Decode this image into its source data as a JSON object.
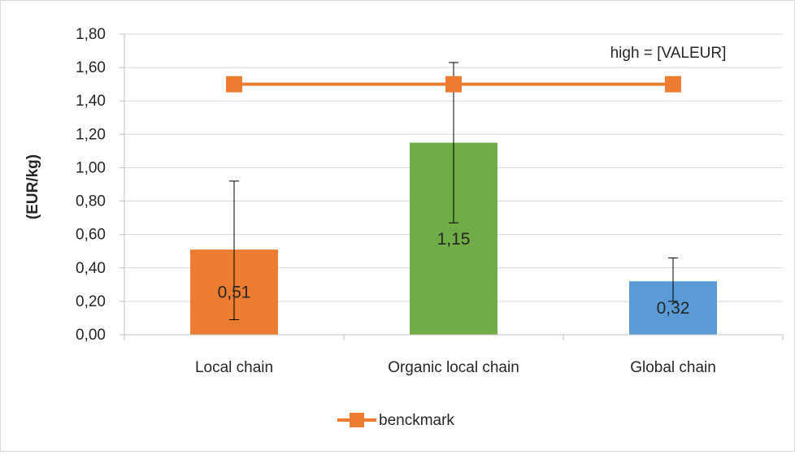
{
  "chart_data": {
    "type": "bar",
    "categories": [
      "Local chain",
      "Organic local chain",
      "Global chain"
    ],
    "values": [
      0.51,
      1.15,
      0.32
    ],
    "value_labels": [
      "0,51",
      "1,15",
      "0,32"
    ],
    "bar_colors": [
      "#ed7d31",
      "#70ad47",
      "#5b9bd5"
    ],
    "error_bars": [
      {
        "low": 0.09,
        "high": 0.92
      },
      {
        "low": 0.67,
        "high": 1.63
      },
      {
        "low": 0.2,
        "high": 0.46
      }
    ],
    "line_series": {
      "name": "benckmark",
      "values": [
        1.5,
        1.5,
        1.5
      ],
      "color": "#ed7d31",
      "marker": "square"
    },
    "annotation": "high = [VALEUR]",
    "ylabel": "(EUR/kg)",
    "xlabel": "",
    "ylim": [
      0,
      1.8
    ],
    "y_ticks": [
      {
        "value": 0.0,
        "label": "0,00"
      },
      {
        "value": 0.2,
        "label": "0,20"
      },
      {
        "value": 0.4,
        "label": "0,40"
      },
      {
        "value": 0.6,
        "label": "0,60"
      },
      {
        "value": 0.8,
        "label": "0,80"
      },
      {
        "value": 1.0,
        "label": "1,00"
      },
      {
        "value": 1.2,
        "label": "1,20"
      },
      {
        "value": 1.4,
        "label": "1,40"
      },
      {
        "value": 1.6,
        "label": "1,60"
      },
      {
        "value": 1.8,
        "label": "1,80"
      }
    ],
    "grid": true,
    "legend": {
      "position": "bottom",
      "entries": [
        "benckmark"
      ]
    }
  }
}
